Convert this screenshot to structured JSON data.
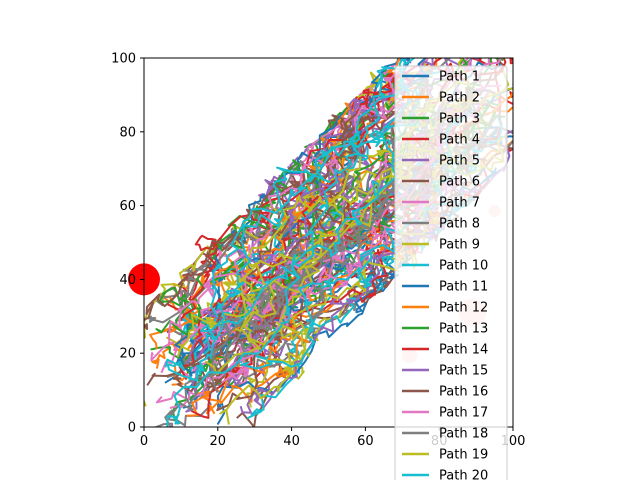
{
  "chart_data": {
    "type": "line",
    "title": "",
    "xlabel": "",
    "ylabel": "",
    "xlim": [
      0,
      100
    ],
    "ylim": [
      0,
      100
    ],
    "xticks": [
      "0",
      "20",
      "40",
      "60",
      "80",
      "100"
    ],
    "yticks": [
      "0",
      "20",
      "40",
      "60",
      "80",
      "100"
    ],
    "grid": false,
    "legend_position": "upper-right, overflowing below the axes",
    "series": [
      {
        "name": "Path 1",
        "color": "#1f77b4"
      },
      {
        "name": "Path 2",
        "color": "#ff7f0e"
      },
      {
        "name": "Path 3",
        "color": "#2ca02c"
      },
      {
        "name": "Path 4",
        "color": "#d62728"
      },
      {
        "name": "Path 5",
        "color": "#9467bd"
      },
      {
        "name": "Path 6",
        "color": "#8c564b"
      },
      {
        "name": "Path 7",
        "color": "#e377c2"
      },
      {
        "name": "Path 8",
        "color": "#7f7f7f"
      },
      {
        "name": "Path 9",
        "color": "#bcbd22"
      },
      {
        "name": "Path 10",
        "color": "#17becf"
      },
      {
        "name": "Path 11",
        "color": "#1f77b4"
      },
      {
        "name": "Path 12",
        "color": "#ff7f0e"
      },
      {
        "name": "Path 13",
        "color": "#2ca02c"
      },
      {
        "name": "Path 14",
        "color": "#d62728"
      },
      {
        "name": "Path 15",
        "color": "#9467bd"
      },
      {
        "name": "Path 16",
        "color": "#8c564b"
      },
      {
        "name": "Path 17",
        "color": "#e377c2"
      },
      {
        "name": "Path 18",
        "color": "#7f7f7f"
      },
      {
        "name": "Path 19",
        "color": "#bcbd22"
      },
      {
        "name": "Path 20",
        "color": "#17becf"
      }
    ],
    "markers": [
      {
        "x": 0,
        "y": 40,
        "color": "#ff0000",
        "opacity": 1.0
      },
      {
        "x": 89,
        "y": 31,
        "color": "#ff0000",
        "opacity": 0.2
      },
      {
        "x": 72,
        "y": 19.5,
        "color": "#ff0000",
        "opacity": 0.2
      },
      {
        "x": 95,
        "y": 58.5,
        "color": "#ff0000",
        "opacity": 0.2
      }
    ]
  }
}
